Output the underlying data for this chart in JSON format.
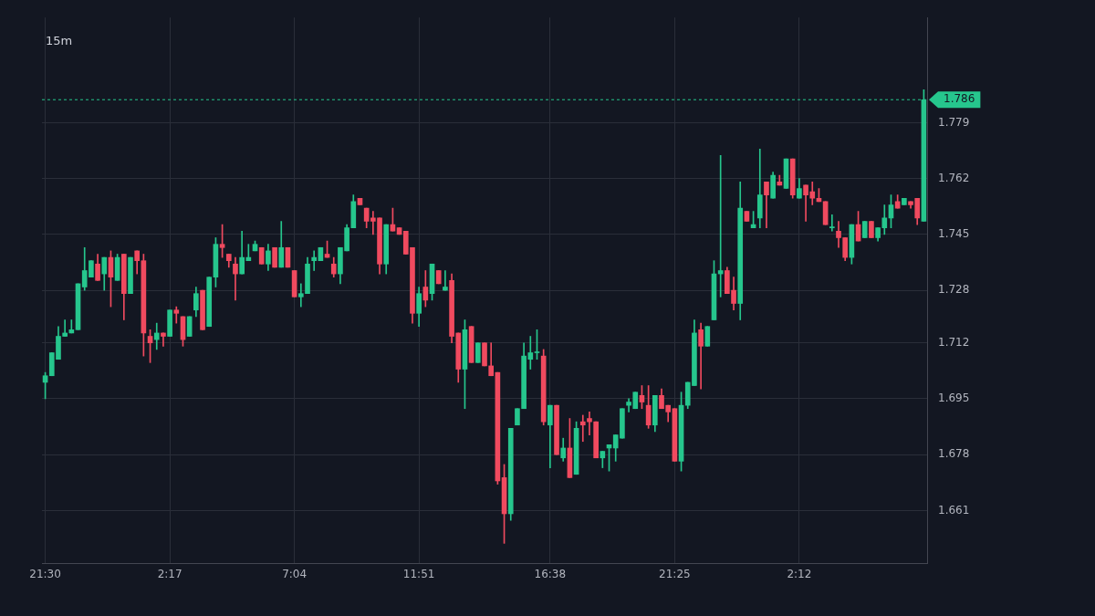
{
  "chart_data": {
    "type": "candlestick",
    "title": "15m",
    "categories": [
      "21:30",
      null,
      null,
      null,
      null,
      null,
      null,
      null,
      null,
      null,
      null,
      null,
      null,
      null,
      null,
      null,
      null,
      null,
      null,
      "2:17",
      null,
      null,
      null,
      null,
      null,
      null,
      null,
      null,
      null,
      null,
      null,
      null,
      null,
      null,
      null,
      null,
      null,
      null,
      "7:04",
      null,
      null,
      null,
      null,
      null,
      null,
      null,
      null,
      null,
      null,
      null,
      null,
      null,
      null,
      null,
      null,
      null,
      null,
      "11:51",
      null,
      null,
      null,
      null,
      null,
      null,
      null,
      null,
      null,
      null,
      null,
      null,
      null,
      null,
      null,
      null,
      null,
      null,
      null,
      "16:38",
      null,
      null,
      null,
      null,
      null,
      null,
      null,
      null,
      null,
      null,
      null,
      null,
      null,
      null,
      null,
      null,
      null,
      null,
      "21:25",
      null,
      null,
      null,
      null,
      null,
      null,
      null,
      null,
      null,
      null,
      null,
      null,
      null,
      null,
      null,
      null,
      null,
      null,
      "2:12",
      null,
      null,
      null,
      null,
      null,
      null,
      null,
      null,
      null,
      null,
      null,
      null,
      null,
      null,
      null,
      null,
      null,
      null,
      null
    ],
    "ylim": [
      1.645,
      1.811
    ],
    "yticks": [
      1.661,
      1.678,
      1.695,
      1.712,
      1.728,
      1.745,
      1.762,
      1.779
    ],
    "tick_labels": "xy",
    "grid": true,
    "ref_lines": [
      {
        "axis": "y",
        "value": 1.786,
        "label": "1.786",
        "color": "#26c68d",
        "line_style": "dashed"
      }
    ],
    "series": [
      {
        "type": "candlestick",
        "ohlc": [
          [
            1.7,
            1.703,
            1.695,
            1.702
          ],
          [
            1.702,
            1.709,
            1.702,
            1.709
          ],
          [
            1.707,
            1.717,
            1.707,
            1.714
          ],
          [
            1.714,
            1.719,
            1.714,
            1.715
          ],
          [
            1.715,
            1.719,
            1.715,
            1.716
          ],
          [
            1.716,
            1.73,
            1.716,
            1.73
          ],
          [
            1.729,
            1.741,
            1.728,
            1.734
          ],
          [
            1.732,
            1.737,
            1.732,
            1.737
          ],
          [
            1.736,
            1.739,
            1.731,
            1.731
          ],
          [
            1.733,
            1.738,
            1.728,
            1.738
          ],
          [
            1.738,
            1.74,
            1.723,
            1.732
          ],
          [
            1.731,
            1.739,
            1.731,
            1.738
          ],
          [
            1.739,
            1.739,
            1.719,
            1.727
          ],
          [
            1.727,
            1.738,
            1.727,
            1.738
          ],
          [
            1.74,
            1.74,
            1.733,
            1.737
          ],
          [
            1.737,
            1.739,
            1.708,
            1.715
          ],
          [
            1.714,
            1.716,
            1.706,
            1.712
          ],
          [
            1.713,
            1.718,
            1.71,
            1.715
          ],
          [
            1.715,
            1.715,
            1.711,
            1.714
          ],
          [
            1.714,
            1.722,
            1.714,
            1.722
          ],
          [
            1.722,
            1.723,
            1.718,
            1.721
          ],
          [
            1.72,
            1.72,
            1.711,
            1.713
          ],
          [
            1.714,
            1.72,
            1.714,
            1.72
          ],
          [
            1.722,
            1.729,
            1.72,
            1.727
          ],
          [
            1.728,
            1.728,
            1.716,
            1.716
          ],
          [
            1.717,
            1.732,
            1.717,
            1.732
          ],
          [
            1.732,
            1.744,
            1.729,
            1.742
          ],
          [
            1.742,
            1.748,
            1.738,
            1.741
          ],
          [
            1.739,
            1.739,
            1.735,
            1.737
          ],
          [
            1.736,
            1.738,
            1.725,
            1.733
          ],
          [
            1.733,
            1.746,
            1.733,
            1.738
          ],
          [
            1.737,
            1.742,
            1.737,
            1.738
          ],
          [
            1.74,
            1.743,
            1.74,
            1.742
          ],
          [
            1.741,
            1.741,
            1.736,
            1.736
          ],
          [
            1.736,
            1.742,
            1.734,
            1.74
          ],
          [
            1.741,
            1.741,
            1.735,
            1.735
          ],
          [
            1.735,
            1.749,
            1.735,
            1.741
          ],
          [
            1.741,
            1.741,
            1.735,
            1.735
          ],
          [
            1.734,
            1.734,
            1.726,
            1.726
          ],
          [
            1.726,
            1.73,
            1.723,
            1.727
          ],
          [
            1.727,
            1.738,
            1.727,
            1.736
          ],
          [
            1.737,
            1.74,
            1.734,
            1.738
          ],
          [
            1.737,
            1.741,
            1.737,
            1.741
          ],
          [
            1.739,
            1.743,
            1.738,
            1.738
          ],
          [
            1.736,
            1.738,
            1.732,
            1.733
          ],
          [
            1.733,
            1.741,
            1.73,
            1.741
          ],
          [
            1.74,
            1.748,
            1.74,
            1.747
          ],
          [
            1.747,
            1.757,
            1.747,
            1.755
          ],
          [
            1.756,
            1.756,
            1.754,
            1.754
          ],
          [
            1.753,
            1.753,
            1.747,
            1.749
          ],
          [
            1.75,
            1.752,
            1.745,
            1.749
          ],
          [
            1.75,
            1.75,
            1.733,
            1.736
          ],
          [
            1.736,
            1.748,
            1.733,
            1.748
          ],
          [
            1.748,
            1.753,
            1.746,
            1.746
          ],
          [
            1.747,
            1.747,
            1.745,
            1.745
          ],
          [
            1.746,
            1.746,
            1.739,
            1.739
          ],
          [
            1.741,
            1.741,
            1.718,
            1.721
          ],
          [
            1.721,
            1.729,
            1.717,
            1.727
          ],
          [
            1.729,
            1.734,
            1.723,
            1.725
          ],
          [
            1.727,
            1.736,
            1.725,
            1.736
          ],
          [
            1.734,
            1.734,
            1.73,
            1.73
          ],
          [
            1.728,
            1.734,
            1.728,
            1.729
          ],
          [
            1.731,
            1.733,
            1.712,
            1.714
          ],
          [
            1.715,
            1.715,
            1.7,
            1.704
          ],
          [
            1.704,
            1.719,
            1.692,
            1.716
          ],
          [
            1.717,
            1.717,
            1.706,
            1.706
          ],
          [
            1.706,
            1.712,
            1.706,
            1.712
          ],
          [
            1.712,
            1.712,
            1.705,
            1.705
          ],
          [
            1.705,
            1.712,
            1.702,
            1.702
          ],
          [
            1.703,
            1.703,
            1.669,
            1.67
          ],
          [
            1.671,
            1.675,
            1.651,
            1.66
          ],
          [
            1.66,
            1.686,
            1.658,
            1.686
          ],
          [
            1.687,
            1.692,
            1.687,
            1.692
          ],
          [
            1.692,
            1.712,
            1.692,
            1.708
          ],
          [
            1.707,
            1.714,
            1.704,
            1.709
          ],
          [
            1.709,
            1.716,
            1.707,
            1.709
          ],
          [
            1.708,
            1.71,
            1.687,
            1.688
          ],
          [
            1.687,
            1.693,
            1.674,
            1.693
          ],
          [
            1.693,
            1.693,
            1.678,
            1.678
          ],
          [
            1.677,
            1.683,
            1.676,
            1.68
          ],
          [
            1.68,
            1.689,
            1.671,
            1.671
          ],
          [
            1.672,
            1.688,
            1.672,
            1.686
          ],
          [
            1.688,
            1.69,
            1.682,
            1.687
          ],
          [
            1.689,
            1.691,
            1.684,
            1.688
          ],
          [
            1.688,
            1.688,
            1.677,
            1.677
          ],
          [
            1.677,
            1.679,
            1.674,
            1.679
          ],
          [
            1.68,
            1.681,
            1.673,
            1.681
          ],
          [
            1.68,
            1.684,
            1.676,
            1.684
          ],
          [
            1.683,
            1.692,
            1.683,
            1.692
          ],
          [
            1.693,
            1.695,
            1.691,
            1.694
          ],
          [
            1.692,
            1.697,
            1.692,
            1.697
          ],
          [
            1.696,
            1.699,
            1.692,
            1.694
          ],
          [
            1.693,
            1.699,
            1.686,
            1.687
          ],
          [
            1.687,
            1.696,
            1.685,
            1.696
          ],
          [
            1.696,
            1.698,
            1.692,
            1.692
          ],
          [
            1.693,
            1.693,
            1.688,
            1.691
          ],
          [
            1.692,
            1.692,
            1.676,
            1.676
          ],
          [
            1.676,
            1.697,
            1.673,
            1.693
          ],
          [
            1.693,
            1.7,
            1.692,
            1.7
          ],
          [
            1.699,
            1.719,
            1.699,
            1.715
          ],
          [
            1.716,
            1.718,
            1.698,
            1.711
          ],
          [
            1.711,
            1.717,
            1.711,
            1.717
          ],
          [
            1.719,
            1.737,
            1.719,
            1.733
          ],
          [
            1.733,
            1.769,
            1.726,
            1.734
          ],
          [
            1.734,
            1.735,
            1.727,
            1.727
          ],
          [
            1.728,
            1.732,
            1.722,
            1.724
          ],
          [
            1.724,
            1.761,
            1.719,
            1.753
          ],
          [
            1.752,
            1.752,
            1.749,
            1.749
          ],
          [
            1.747,
            1.752,
            1.747,
            1.748
          ],
          [
            1.75,
            1.771,
            1.747,
            1.757
          ],
          [
            1.761,
            1.761,
            1.747,
            1.757
          ],
          [
            1.756,
            1.764,
            1.756,
            1.763
          ],
          [
            1.761,
            1.763,
            1.76,
            1.76
          ],
          [
            1.759,
            1.768,
            1.759,
            1.768
          ],
          [
            1.768,
            1.768,
            1.756,
            1.757
          ],
          [
            1.756,
            1.762,
            1.756,
            1.759
          ],
          [
            1.76,
            1.76,
            1.749,
            1.757
          ],
          [
            1.758,
            1.761,
            1.754,
            1.756
          ],
          [
            1.756,
            1.759,
            1.755,
            1.755
          ],
          [
            1.755,
            1.755,
            1.748,
            1.748
          ],
          [
            1.747,
            1.751,
            1.746,
            1.747
          ],
          [
            1.746,
            1.749,
            1.741,
            1.744
          ],
          [
            1.744,
            1.744,
            1.737,
            1.738
          ],
          [
            1.738,
            1.748,
            1.736,
            1.748
          ],
          [
            1.748,
            1.752,
            1.743,
            1.743
          ],
          [
            1.744,
            1.749,
            1.744,
            1.749
          ],
          [
            1.749,
            1.749,
            1.744,
            1.744
          ],
          [
            1.744,
            1.747,
            1.743,
            1.747
          ],
          [
            1.747,
            1.754,
            1.745,
            1.75
          ],
          [
            1.75,
            1.757,
            1.747,
            1.754
          ],
          [
            1.755,
            1.757,
            1.753,
            1.753
          ],
          [
            1.754,
            1.756,
            1.754,
            1.756
          ],
          [
            1.755,
            1.755,
            1.753,
            1.754
          ],
          [
            1.756,
            1.756,
            1.748,
            1.75
          ],
          [
            1.749,
            1.789,
            1.749,
            1.786
          ]
        ],
        "colors": [
          "#26c68d",
          "#26c68d",
          "#26c68d",
          "#26c68d",
          "#26c68d",
          "#26c68d",
          "#26c68d",
          "#26c68d",
          "#f04a5f",
          "#26c68d",
          "#f04a5f",
          "#26c68d",
          "#f04a5f",
          "#26c68d",
          "#f04a5f",
          "#f04a5f",
          "#f04a5f",
          "#26c68d",
          "#f04a5f",
          "#26c68d",
          "#f04a5f",
          "#f04a5f",
          "#26c68d",
          "#26c68d",
          "#f04a5f",
          "#26c68d",
          "#26c68d",
          "#f04a5f",
          "#f04a5f",
          "#f04a5f",
          "#26c68d",
          "#26c68d",
          "#26c68d",
          "#f04a5f",
          "#26c68d",
          "#f04a5f",
          "#26c68d",
          "#f04a5f",
          "#f04a5f",
          "#26c68d",
          "#26c68d",
          "#26c68d",
          "#26c68d",
          "#f04a5f",
          "#f04a5f",
          "#26c68d",
          "#26c68d",
          "#26c68d",
          "#f04a5f",
          "#f04a5f",
          "#f04a5f",
          "#f04a5f",
          "#26c68d",
          "#f04a5f",
          "#f04a5f",
          "#f04a5f",
          "#f04a5f",
          "#26c68d",
          "#f04a5f",
          "#26c68d",
          "#f04a5f",
          "#26c68d",
          "#f04a5f",
          "#f04a5f",
          "#26c68d",
          "#f04a5f",
          "#26c68d",
          "#f04a5f",
          "#f04a5f",
          "#f04a5f",
          "#f04a5f",
          "#26c68d",
          "#26c68d",
          "#26c68d",
          "#26c68d",
          "#26c68d",
          "#f04a5f",
          "#26c68d",
          "#f04a5f",
          "#26c68d",
          "#f04a5f",
          "#26c68d",
          "#f04a5f",
          "#f04a5f",
          "#f04a5f",
          "#26c68d",
          "#26c68d",
          "#26c68d",
          "#26c68d",
          "#26c68d",
          "#26c68d",
          "#f04a5f",
          "#f04a5f",
          "#26c68d",
          "#f04a5f",
          "#f04a5f",
          "#f04a5f",
          "#26c68d",
          "#26c68d",
          "#26c68d",
          "#f04a5f",
          "#26c68d",
          "#26c68d",
          "#26c68d",
          "#f04a5f",
          "#f04a5f",
          "#26c68d",
          "#f04a5f",
          "#26c68d",
          "#26c68d",
          "#f04a5f",
          "#26c68d",
          "#f04a5f",
          "#26c68d",
          "#f04a5f",
          "#26c68d",
          "#f04a5f",
          "#f04a5f",
          "#f04a5f",
          "#f04a5f",
          "#26c68d",
          "#f04a5f",
          "#f04a5f",
          "#26c68d",
          "#f04a5f",
          "#26c68d",
          "#f04a5f",
          "#26c68d",
          "#26c68d",
          "#26c68d",
          "#f04a5f",
          "#26c68d",
          "#f04a5f",
          "#f04a5f",
          "#26c68d"
        ]
      }
    ]
  }
}
